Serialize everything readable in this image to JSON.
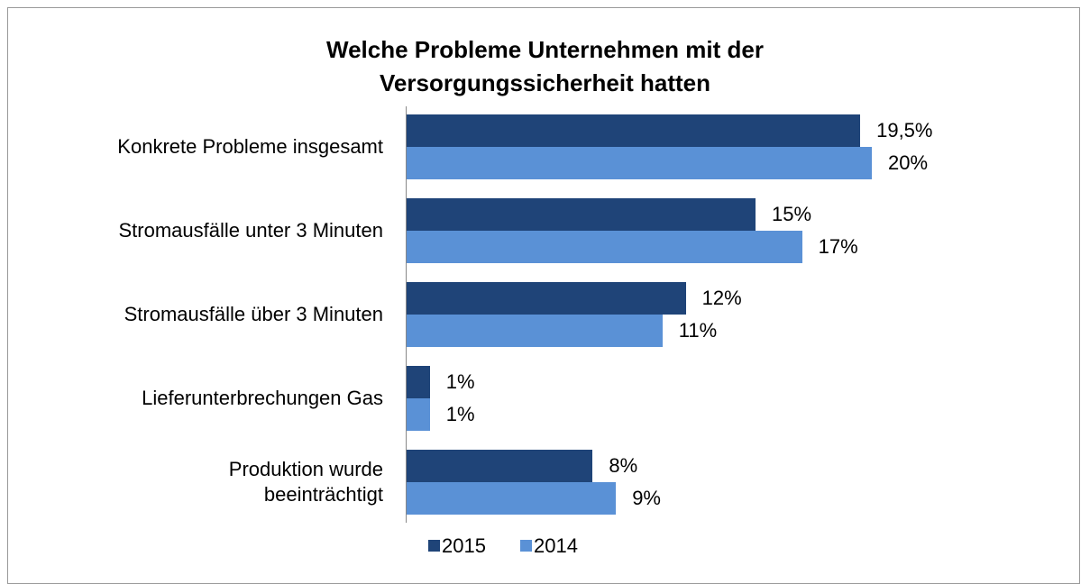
{
  "chart_data": {
    "type": "bar",
    "orientation": "horizontal",
    "title": "Welche Probleme Unternehmen mit der\nVersorgungssicherheit hatten",
    "categories": [
      "Konkrete Probleme insgesamt",
      "Stromausfälle unter 3 Minuten",
      "Stromausfälle über 3 Minuten",
      "Lieferunterbrechungen Gas",
      "Produktion wurde\nbeeinträchtigt"
    ],
    "series": [
      {
        "name": "2015",
        "color": "#1f4478",
        "values": [
          19.5,
          15,
          12,
          1,
          8
        ],
        "value_labels": [
          "19,5%",
          "15%",
          "12%",
          "1%",
          "8%"
        ]
      },
      {
        "name": "2014",
        "color": "#5a91d6",
        "values": [
          20,
          17,
          11,
          1,
          9
        ],
        "value_labels": [
          "20%",
          "17%",
          "11%",
          "1%",
          "9%"
        ]
      }
    ],
    "legend": "bottom"
  }
}
